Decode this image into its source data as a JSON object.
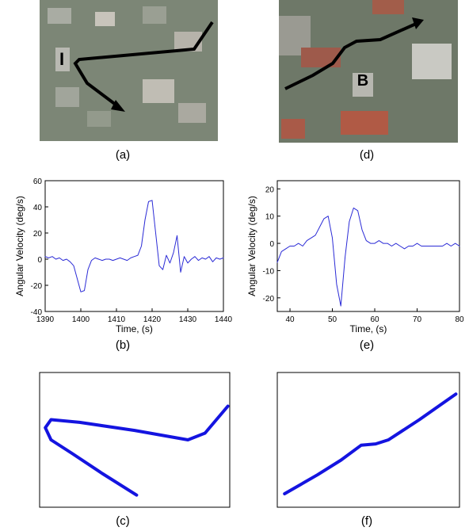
{
  "images": [
    {
      "caption": "(a)",
      "label": "I"
    },
    {
      "caption": "(d)",
      "label": "B"
    }
  ],
  "chart_data": [
    {
      "type": "line",
      "caption": "(b)",
      "xlabel": "Time, (s)",
      "ylabel": "Angular Velocity (deg/s)",
      "xlim": [
        1390,
        1440
      ],
      "xticks": [
        1390,
        1400,
        1410,
        1420,
        1430,
        1440
      ],
      "ylim": [
        -40,
        60
      ],
      "yticks": [
        -40,
        -20,
        0,
        20,
        40,
        60
      ],
      "x": [
        1390,
        1391,
        1392,
        1393,
        1394,
        1395,
        1396,
        1397,
        1398,
        1399,
        1400,
        1401,
        1402,
        1403,
        1404,
        1405,
        1406,
        1407,
        1408,
        1409,
        1410,
        1411,
        1412,
        1413,
        1414,
        1415,
        1416,
        1417,
        1418,
        1419,
        1420,
        1421,
        1422,
        1423,
        1424,
        1425,
        1426,
        1427,
        1428,
        1429,
        1430,
        1431,
        1432,
        1433,
        1434,
        1435,
        1436,
        1437,
        1438,
        1439,
        1440
      ],
      "series": [
        {
          "color": "#2b2bd6",
          "values": [
            2,
            1,
            2,
            0,
            1,
            -1,
            0,
            -2,
            -5,
            -15,
            -25,
            -24,
            -8,
            -1,
            1,
            0,
            -1,
            0,
            0,
            -1,
            0,
            1,
            0,
            -1,
            1,
            2,
            3,
            10,
            30,
            44,
            45,
            20,
            -5,
            -8,
            3,
            -3,
            5,
            18,
            -10,
            2,
            -3,
            0,
            2,
            -1,
            1,
            0,
            2,
            -2,
            1,
            0,
            1
          ]
        }
      ]
    },
    {
      "type": "line",
      "caption": "(e)",
      "xlabel": "Time, (s)",
      "ylabel": "Angular Velocity (deg/s)",
      "xlim": [
        37,
        80
      ],
      "xticks": [
        40,
        50,
        60,
        70,
        80
      ],
      "ylim": [
        -25,
        23
      ],
      "yticks": [
        -20,
        -10,
        0,
        10,
        20
      ],
      "x": [
        37,
        38,
        39,
        40,
        41,
        42,
        43,
        44,
        45,
        46,
        47,
        48,
        49,
        50,
        51,
        52,
        53,
        54,
        55,
        56,
        57,
        58,
        59,
        60,
        61,
        62,
        63,
        64,
        65,
        66,
        67,
        68,
        69,
        70,
        71,
        72,
        73,
        74,
        75,
        76,
        77,
        78,
        79,
        80
      ],
      "series": [
        {
          "color": "#2b2bd6",
          "values": [
            -7,
            -3,
            -2,
            -1,
            -1,
            0,
            -1,
            1,
            2,
            3,
            6,
            9,
            10,
            2,
            -15,
            -23,
            -5,
            8,
            13,
            12,
            5,
            1,
            0,
            0,
            1,
            0,
            0,
            -1,
            0,
            -1,
            -2,
            -1,
            -1,
            0,
            -1,
            -1,
            -1,
            -1,
            -1,
            -1,
            0,
            -1,
            0,
            -1
          ]
        }
      ]
    },
    {
      "type": "trajectory",
      "caption": "(c)",
      "xlim": [
        0,
        100
      ],
      "ylim": [
        0,
        100
      ],
      "x": [
        51,
        33,
        17,
        6,
        3,
        6,
        21,
        50,
        78,
        87,
        99
      ],
      "series": [
        {
          "color": "#1414e0",
          "values": [
            9,
            25,
            40,
            50,
            59,
            65,
            63,
            57,
            50,
            55,
            75
          ]
        }
      ]
    },
    {
      "type": "trajectory",
      "caption": "(f)",
      "xlim": [
        0,
        100
      ],
      "ylim": [
        0,
        100
      ],
      "x": [
        4,
        22,
        35,
        46,
        54,
        61,
        78,
        98
      ],
      "series": [
        {
          "color": "#1414e0",
          "values": [
            10,
            24,
            35,
            46,
            47,
            50,
            65,
            84
          ]
        }
      ]
    }
  ]
}
